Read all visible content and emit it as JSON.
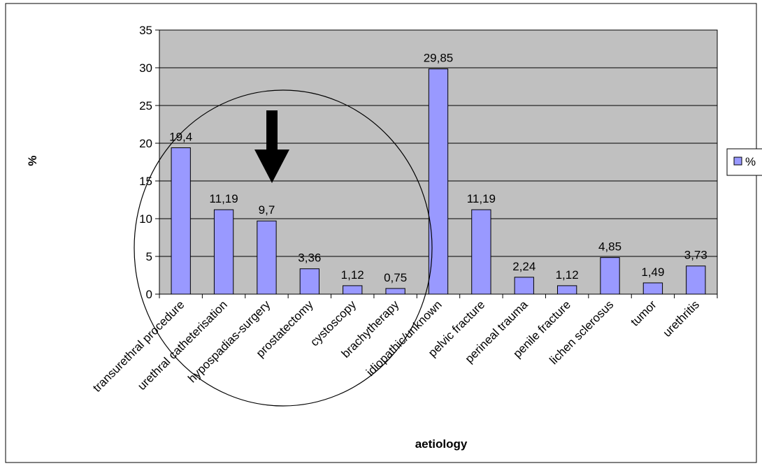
{
  "chart_data": {
    "type": "bar",
    "categories": [
      "transurethral procedure",
      "urethral catheterisation",
      "hypospadias-surgery",
      "prostatectomy",
      "cystoscopy",
      "brachytherapy",
      "idiopathic/unknown",
      "pelvic fracture",
      "perineal trauma",
      "penile fracture",
      "lichen sclerosus",
      "tumor",
      "urethritis"
    ],
    "values": [
      19.4,
      11.19,
      9.7,
      3.36,
      1.12,
      0.75,
      29.85,
      11.19,
      2.24,
      1.12,
      4.85,
      1.49,
      3.73
    ],
    "data_labels": [
      "19,4",
      "11,19",
      "9,7",
      "3,36",
      "1,12",
      "0,75",
      "29,85",
      "11,19",
      "2,24",
      "1,12",
      "4,85",
      "1,49",
      "3,73"
    ],
    "series": [
      {
        "name": "%",
        "values": [
          19.4,
          11.19,
          9.7,
          3.36,
          1.12,
          0.75,
          29.85,
          11.19,
          2.24,
          1.12,
          4.85,
          1.49,
          3.73
        ]
      }
    ],
    "xlabel": "aetiology",
    "ylabel": "%",
    "ylim": [
      0,
      35
    ],
    "yticks": [
      0,
      5,
      10,
      15,
      20,
      25,
      30,
      35
    ],
    "grid": true,
    "legend": {
      "placement": "right",
      "entries": [
        "%"
      ]
    },
    "annotations": [
      "ellipse around iatrogenic causes",
      "downward arrow"
    ],
    "colors": {
      "bar": "#9999ff",
      "plot_bg": "#c0c0c0",
      "grid": "#000000"
    }
  }
}
